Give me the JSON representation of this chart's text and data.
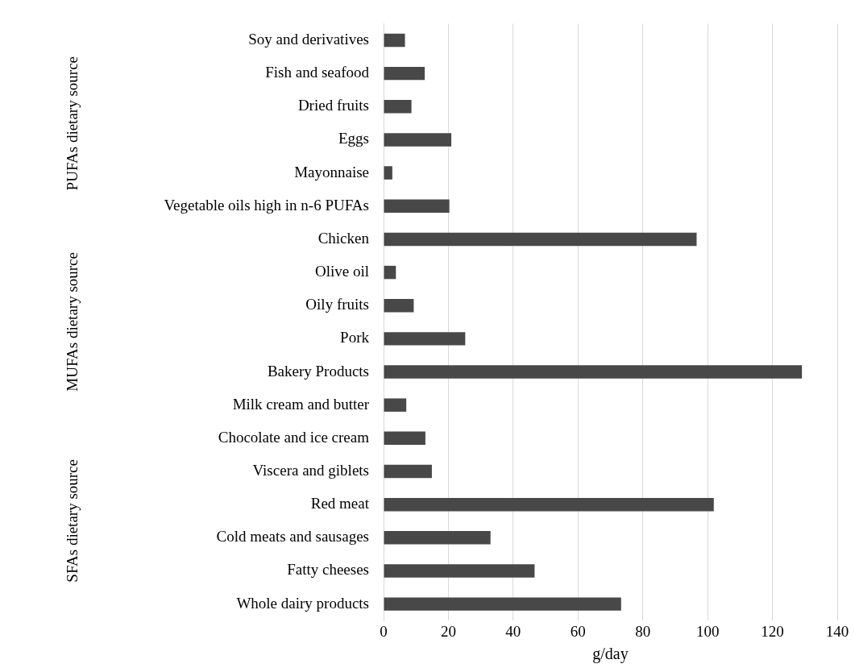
{
  "chart_data": {
    "type": "bar",
    "orientation": "horizontal",
    "xlabel": "g/day",
    "categories": [
      "Soy and derivatives",
      "Fish and seafood",
      "Dried fruits",
      "Eggs",
      "Mayonnaise",
      "Vegetable oils high in n-6 PUFAs",
      "Chicken",
      "Olive oil",
      "Oily fruits",
      "Pork",
      "Bakery Products",
      "Milk cream and butter",
      "Chocolate and ice cream",
      "Viscera and giblets",
      "Red meat",
      "Cold meats and sausages",
      "Fatty cheeses",
      "Whole dairy products"
    ],
    "values": [
      6.6,
      12.7,
      8.6,
      20.9,
      2.7,
      20.3,
      96.6,
      3.8,
      9.3,
      25.2,
      129.1,
      7.0,
      12.9,
      14.9,
      101.9,
      33.0,
      46.6,
      73.3
    ],
    "color": "#484848",
    "xlim": [
      0,
      140
    ],
    "xticks": [
      0,
      20,
      40,
      60,
      80,
      100,
      120,
      140
    ],
    "grid": "x",
    "legend": false,
    "annotations": [
      "PUFAs dietary source",
      "MUFAs dietary source",
      "SFAs dietary source"
    ]
  }
}
